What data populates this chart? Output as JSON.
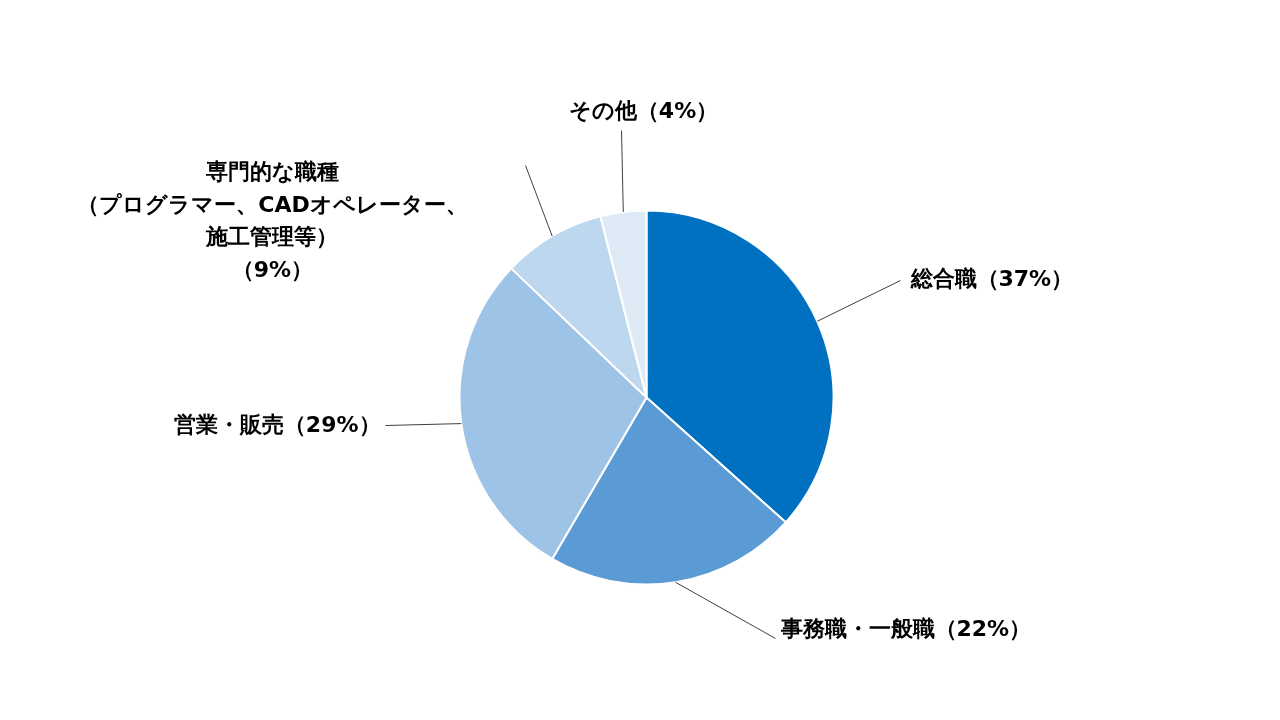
{
  "chart_data": {
    "type": "pie",
    "categories": [
      "総合職（37%）",
      "事務職・一般職（22%）",
      "営業・販売（29%）",
      "専門的な職種（プログラマー、CADオペレーター、施工管理等）（9%）",
      "その他（4%）"
    ],
    "values": [
      37,
      22,
      29,
      9,
      4
    ],
    "colors": [
      "#0070c0",
      "#5b9bd5",
      "#9dc3e6",
      "#bdd7ee",
      "#deebf7"
    ],
    "legend": false
  }
}
